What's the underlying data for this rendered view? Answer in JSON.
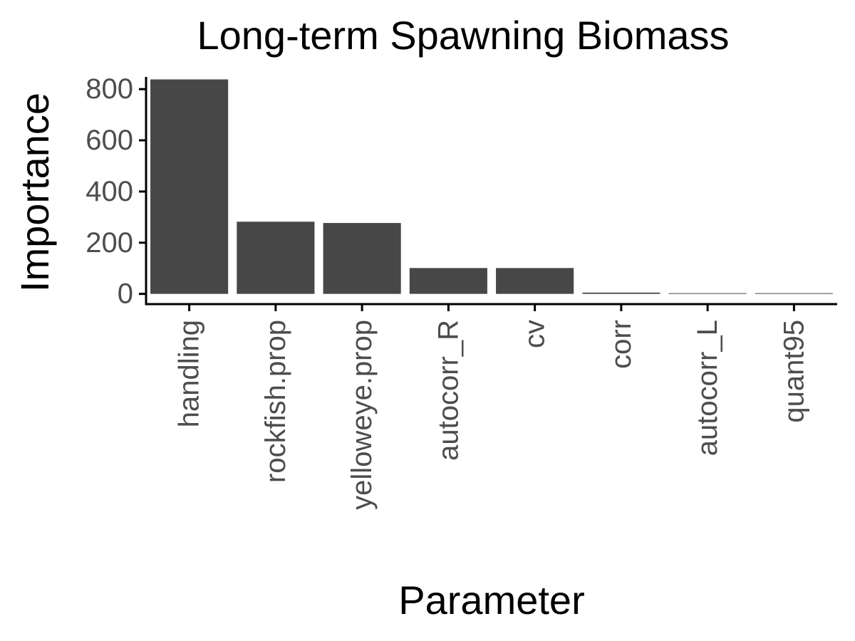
{
  "chart_data": {
    "type": "bar",
    "title": "Long-term Spawning Biomass",
    "xlabel": "Parameter",
    "ylabel": "Importance",
    "categories": [
      "handling",
      "rockfish.prop",
      "yelloweye.prop",
      "autocorr_R",
      "cv",
      "corr",
      "autocorr_L",
      "quant95"
    ],
    "values": [
      838,
      282,
      277,
      101,
      101,
      5,
      1,
      1
    ],
    "ylim": [
      -40,
      870
    ],
    "yticks": [
      0,
      200,
      400,
      600,
      800
    ],
    "grid": false,
    "legend": "none",
    "bar_color": "#474747"
  }
}
